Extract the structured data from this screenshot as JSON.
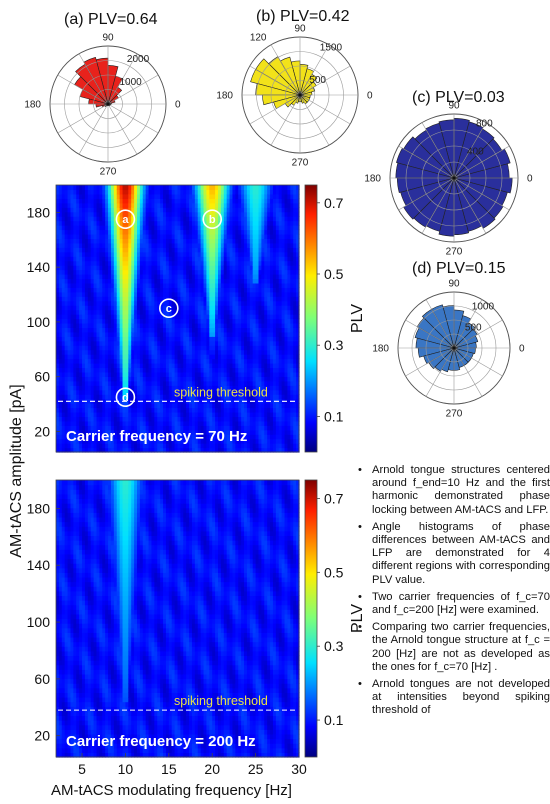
{
  "chart_data": [
    {
      "type": "polar-histogram",
      "title": "(a) PLV=0.64",
      "angle_labels": [
        "90",
        "180",
        "0",
        "270"
      ],
      "radial_ticks": [
        1000,
        2000
      ],
      "radial_tick_labels": [
        "1000",
        "2000"
      ],
      "rmax": 2400,
      "color": "#e8221c",
      "bins_deg": [
        0,
        15,
        30,
        45,
        60,
        75,
        90,
        105,
        120,
        135,
        150,
        165,
        180,
        195,
        210,
        225,
        240,
        255,
        270,
        285,
        300,
        315,
        330,
        345
      ],
      "counts": [
        150,
        300,
        500,
        800,
        1200,
        1600,
        1900,
        2000,
        1900,
        1600,
        1200,
        800,
        500,
        250,
        150,
        100,
        80,
        70,
        60,
        60,
        80,
        100,
        100,
        120
      ]
    },
    {
      "type": "polar-histogram",
      "title": "(b) PLV=0.42",
      "angle_labels": [
        "90",
        "120",
        "180",
        "0",
        "270"
      ],
      "radial_ticks": [
        500,
        1500
      ],
      "radial_tick_labels": [
        "500",
        "1500"
      ],
      "rmax": 1700,
      "color": "#f2e21a",
      "bins_deg": [
        0,
        15,
        30,
        45,
        60,
        75,
        90,
        105,
        120,
        135,
        150,
        165,
        180,
        195,
        210,
        225,
        240,
        255,
        270,
        285,
        300,
        315,
        330,
        345
      ],
      "counts": [
        350,
        450,
        550,
        700,
        800,
        900,
        1000,
        1150,
        1300,
        1500,
        1500,
        1300,
        1100,
        800,
        500,
        350,
        250,
        200,
        200,
        250,
        300,
        300,
        300,
        300
      ]
    },
    {
      "type": "polar-histogram",
      "title": "(c) PLV=0.03",
      "angle_labels": [
        "90",
        "180",
        "0",
        "270"
      ],
      "radial_ticks": [
        400,
        800
      ],
      "radial_tick_labels": [
        "400",
        "800"
      ],
      "rmax": 880,
      "color": "#2a2f9c",
      "bins_deg": [
        0,
        15,
        30,
        45,
        60,
        75,
        90,
        105,
        120,
        135,
        150,
        165,
        180,
        195,
        210,
        225,
        240,
        255,
        270,
        285,
        300,
        315,
        330,
        345
      ],
      "counts": [
        760,
        800,
        760,
        780,
        800,
        820,
        800,
        780,
        760,
        800,
        820,
        800,
        780,
        760,
        800,
        780,
        760,
        800,
        780,
        760,
        800,
        780,
        760,
        800
      ]
    },
    {
      "type": "polar-histogram",
      "title": "(d) PLV=0.15",
      "angle_labels": [
        "90",
        "180",
        "0",
        "270"
      ],
      "radial_ticks": [
        500,
        1000
      ],
      "radial_tick_labels": [
        "500",
        "1000"
      ],
      "rmax": 1250,
      "color": "#3a76c4",
      "bins_deg": [
        0,
        15,
        30,
        45,
        60,
        75,
        90,
        105,
        120,
        135,
        150,
        165,
        180,
        195,
        210,
        225,
        240,
        255,
        270,
        285,
        300,
        315,
        330,
        345
      ],
      "counts": [
        500,
        550,
        600,
        650,
        750,
        850,
        950,
        1000,
        1000,
        950,
        900,
        850,
        800,
        700,
        650,
        600,
        550,
        500,
        500,
        450,
        450,
        450,
        450,
        480
      ]
    },
    {
      "type": "heatmap",
      "xlabel": "",
      "ylabel": "AM-tACS amplitude [pA]",
      "xlim": [
        2,
        30
      ],
      "ylim": [
        5,
        200
      ],
      "yticks": [
        20,
        60,
        100,
        140,
        180
      ],
      "ytick_labels": [
        "20",
        "60",
        "100",
        "140",
        "180"
      ],
      "colorbar_ticks": [
        0.1,
        0.3,
        0.5,
        0.7
      ],
      "colorbar_tick_labels": [
        "0.1",
        "0.3",
        "0.5",
        "0.7"
      ],
      "colorbar_range": [
        0.0,
        0.75
      ],
      "colorbar_label": "PLV",
      "threshold_y": 42,
      "threshold_label": "spiking threshold",
      "panel_label": "Carrier frequency = 70 Hz",
      "markers": [
        {
          "label": "a",
          "x": 10,
          "y": 175
        },
        {
          "label": "b",
          "x": 20,
          "y": 175
        },
        {
          "label": "c",
          "x": 15,
          "y": 110
        },
        {
          "label": "d",
          "x": 10,
          "y": 45
        }
      ],
      "features": [
        {
          "center_hz": 10,
          "peak_plv": 0.72,
          "base_plv": 0.3,
          "onset_pa": 45
        },
        {
          "center_hz": 20,
          "peak_plv": 0.55,
          "base_plv": 0.25,
          "onset_pa": 90
        },
        {
          "center_hz": 25,
          "peak_plv": 0.3,
          "base_plv": 0.22,
          "onset_pa": 130
        }
      ]
    },
    {
      "type": "heatmap",
      "xlabel": "AM-tACS modulating frequency [Hz]",
      "ylabel": "",
      "xlim": [
        2,
        30
      ],
      "ylim": [
        5,
        200
      ],
      "xticks": [
        5,
        10,
        15,
        20,
        25,
        30
      ],
      "xtick_labels": [
        "5",
        "10",
        "15",
        "20",
        "25",
        "30"
      ],
      "yticks": [
        20,
        60,
        100,
        140,
        180
      ],
      "ytick_labels": [
        "20",
        "60",
        "100",
        "140",
        "180"
      ],
      "colorbar_ticks": [
        0.1,
        0.3,
        0.5,
        0.7
      ],
      "colorbar_tick_labels": [
        "0.1",
        "0.3",
        "0.5",
        "0.7"
      ],
      "colorbar_range": [
        0.0,
        0.75
      ],
      "colorbar_label": "PLV",
      "threshold_y": 38,
      "threshold_label": "spiking threshold",
      "panel_label": "Carrier frequency = 200 Hz",
      "features": [
        {
          "center_hz": 10,
          "peak_plv": 0.3,
          "base_plv": 0.18,
          "onset_pa": 45
        }
      ]
    }
  ],
  "bullets": [
    "Arnold tongue structures centered around f_end=10 Hz and the first harmonic demonstrated phase locking between AM-tACS and LFP.",
    "Angle histograms of phase differences between AM-tACS and LFP are demonstrated for 4 different regions with corresponding PLV value.",
    "Two carrier frequencies of f_c=70 and f_c=200 [Hz] were examined.",
    "Comparing two carrier frequencies, the Arnold tongue structure at f_c = 200 [Hz] are not as developed as the ones for f_c=70 [Hz] .",
    "Arnold tongues are not developed at intensities beyond spiking threshold of"
  ]
}
